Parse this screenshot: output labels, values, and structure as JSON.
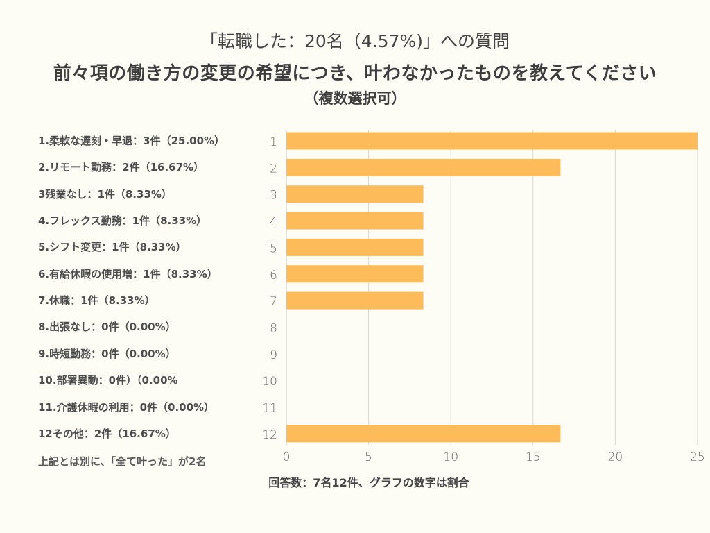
{
  "header": {
    "title_line1": "「転職した：20名（4.57%)」への質問",
    "title_line2": "前々項の働き方の変更の希望につき、叶わなかったものを教えてください",
    "title_line3": "（複数選択可）"
  },
  "labels": [
    "1.柔軟な遅刻・早退：3件（25.00%）",
    "2.リモート勤務：2件（16.67%）",
    "3残業なし：1件（8.33%）",
    "4.フレックス勤務：1件（8.33%）",
    "5.シフト変更：1件（8.33%）",
    "6.有給休暇の使用増：1件（8.33%）",
    "7.休職：1件（8.33%）",
    "8.出張なし：0件（0.00%）",
    "9.時短勤務：0件（0.00%）",
    "10.部署異動：0件）（0.00%",
    "11.介護休暇の利用：0件（0.00%）",
    "12その他：2件（16.67%）"
  ],
  "note": "上記とは別に、「全て叶った」が2名",
  "footer": "回答数：7名12件、グラフの数字は割合",
  "colors": {
    "bar": "#fdbb5a",
    "grid": "#d8d8d0",
    "background": "#fdfdf5"
  },
  "chart_data": {
    "type": "bar",
    "orientation": "horizontal",
    "title": "前々項の働き方の変更の希望につき、叶わなかったものを教えてください",
    "categories": [
      "1",
      "2",
      "3",
      "4",
      "5",
      "6",
      "7",
      "8",
      "9",
      "10",
      "11",
      "12"
    ],
    "values": [
      25.0,
      16.67,
      8.33,
      8.33,
      8.33,
      8.33,
      8.33,
      0.0,
      0.0,
      0.0,
      0.0,
      16.67
    ],
    "xlim": [
      0,
      25
    ],
    "xticks": [
      0,
      5,
      10,
      15,
      20,
      25
    ],
    "xlabel": "",
    "ylabel": "",
    "grid": true,
    "legend": "none"
  }
}
